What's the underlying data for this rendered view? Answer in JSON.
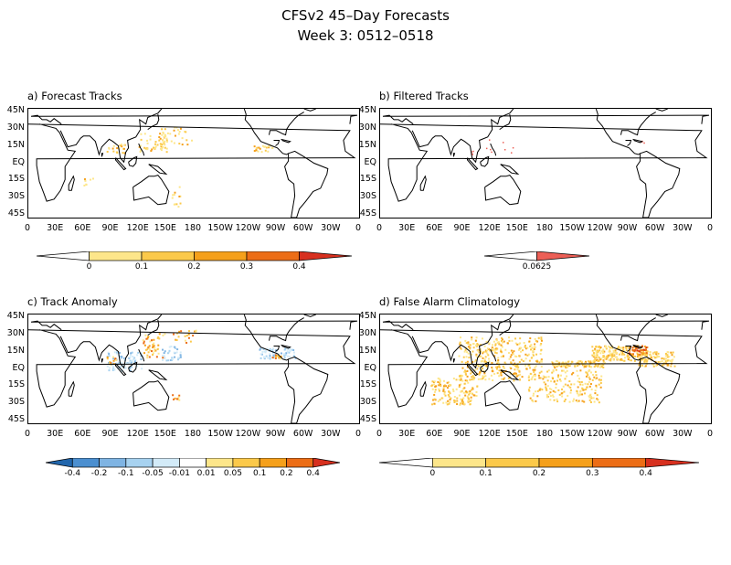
{
  "header": {
    "title": "CFSv2 45–Day Forecasts",
    "subtitle": "Week 3: 0512–0518"
  },
  "lat_labels": [
    "45N",
    "30N",
    "15N",
    "EQ",
    "15S",
    "30S",
    "45S"
  ],
  "lon_labels": [
    "0",
    "30E",
    "60E",
    "90E",
    "120E",
    "150E",
    "180",
    "150W",
    "120W",
    "90W",
    "60W",
    "30W",
    "0"
  ],
  "panels": [
    {
      "id": "a",
      "title": "a) Forecast Tracks"
    },
    {
      "id": "b",
      "title": "b) Filtered Tracks"
    },
    {
      "id": "c",
      "title": "c) Track Anomaly"
    },
    {
      "id": "d",
      "title": "d) False Alarm Climatology"
    }
  ],
  "colorbars": {
    "a": {
      "labels": [
        "0",
        "0.1",
        "0.2",
        "0.3",
        "0.4"
      ],
      "colors": [
        "#ffffff",
        "#fde68a",
        "#fbc94a",
        "#f5a01b",
        "#ec6d16",
        "#d7301f"
      ]
    },
    "b": {
      "labels": [
        "0.0625"
      ],
      "colors": [
        "#ffffff",
        "#ec5f56"
      ]
    },
    "c": {
      "labels": [
        "-0.4",
        "-0.2",
        "-0.1",
        "-0.05",
        "-0.01",
        "0.01",
        "0.05",
        "0.1",
        "0.2",
        "0.4"
      ],
      "colors": [
        "#2166ac",
        "#4b8fd0",
        "#7fb4e3",
        "#a7d2f0",
        "#d3ebf8",
        "#ffffff",
        "#fde68a",
        "#fbc94a",
        "#f5a01b",
        "#ec6d16",
        "#d7301f"
      ]
    },
    "d": {
      "labels": [
        "0",
        "0.1",
        "0.2",
        "0.3",
        "0.4"
      ],
      "colors": [
        "#ffffff",
        "#fde68a",
        "#fbc94a",
        "#f5a01b",
        "#ec6d16",
        "#d7301f"
      ]
    }
  }
}
